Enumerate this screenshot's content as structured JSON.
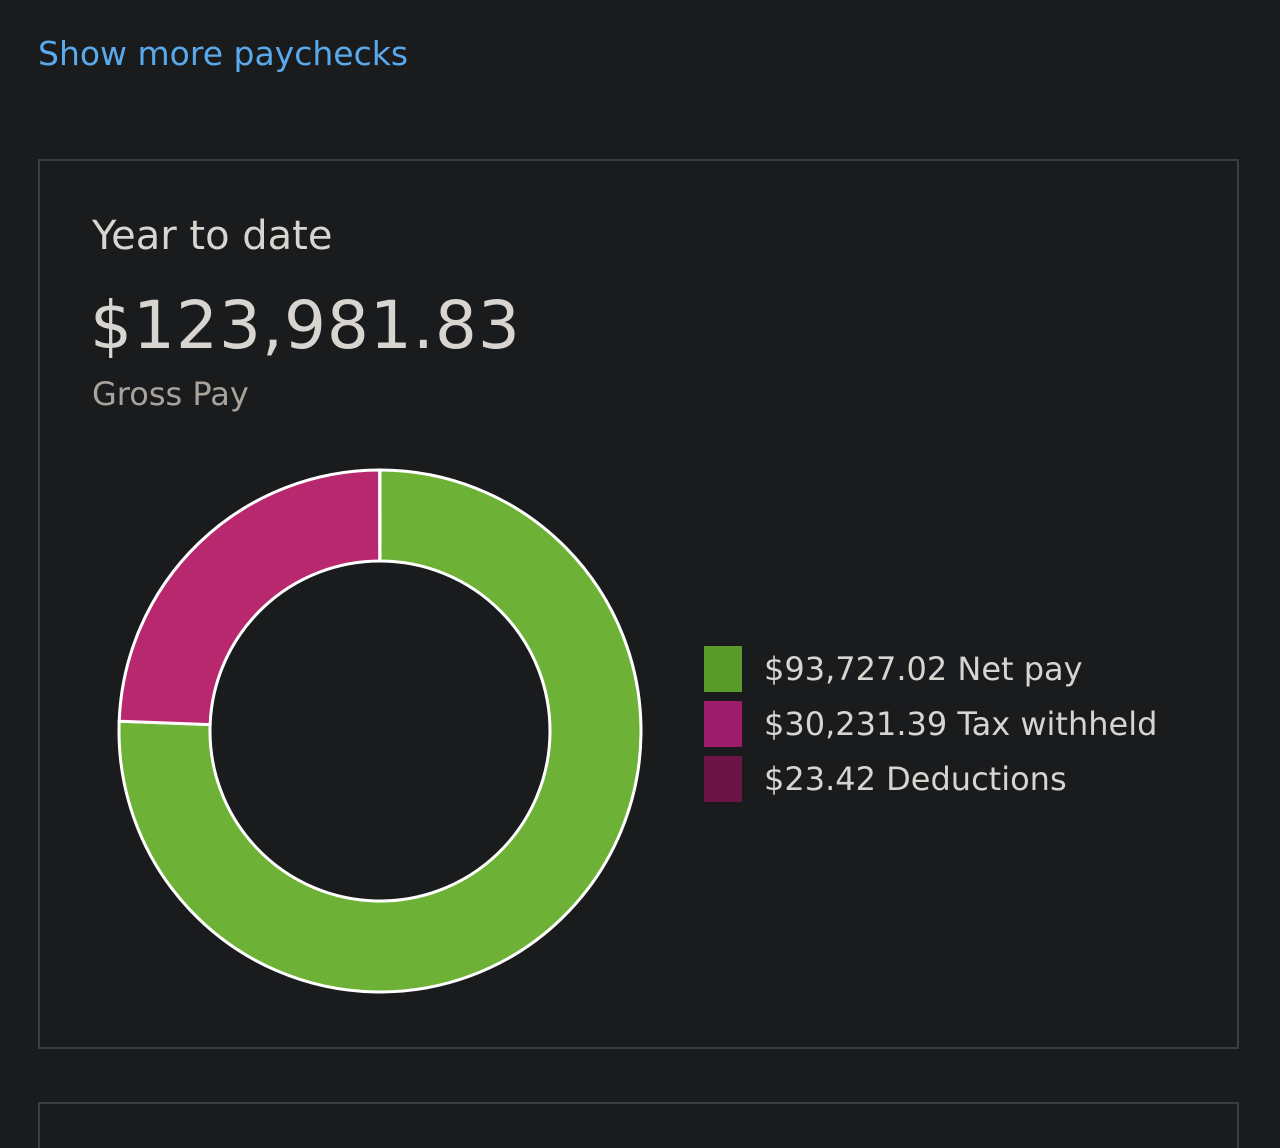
{
  "links": {
    "show_more": "Show more paychecks"
  },
  "summary": {
    "title": "Year to date",
    "amount": "$123,981.83",
    "amount_label": "Gross Pay"
  },
  "legend": [
    {
      "amount": "$93,727.02",
      "label": "Net pay",
      "color": "#5a9a2a"
    },
    {
      "amount": "$30,231.39",
      "label": "Tax withheld",
      "color": "#9e1d6a"
    },
    {
      "amount": "$23.42",
      "label": "Deductions",
      "color": "#6b1446"
    }
  ],
  "chart_data": {
    "type": "pie",
    "donut": true,
    "categories": [
      "Net pay",
      "Tax withheld",
      "Deductions"
    ],
    "values": [
      93727.02,
      30231.39,
      23.42
    ],
    "colors": [
      "#6db236",
      "#b7286f",
      "#7a1850"
    ],
    "title": "",
    "legend_position": "right"
  }
}
